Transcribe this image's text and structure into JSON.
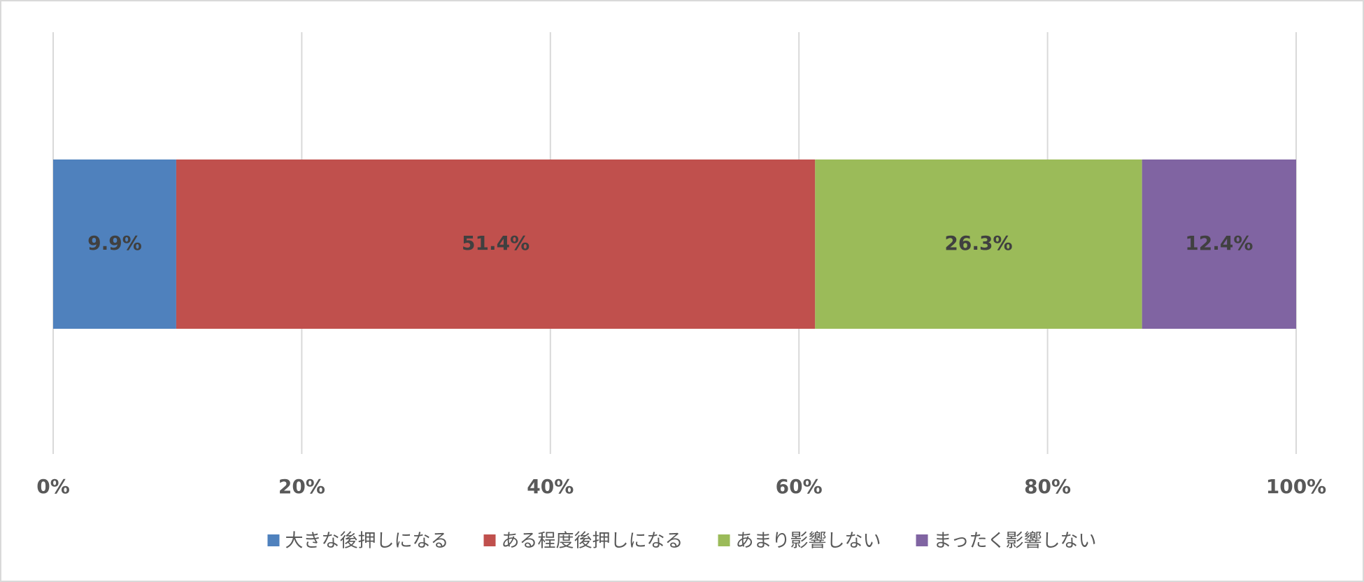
{
  "chart_data": {
    "type": "stacked_bar_horizontal",
    "categories": [
      null
    ],
    "series": [
      {
        "name": "大きな後押しになる",
        "color": "#4f81bd",
        "values": [
          9.9
        ],
        "value_labels": [
          "9.9%"
        ]
      },
      {
        "name": "ある程度後押しになる",
        "color": "#c0504d",
        "values": [
          51.4
        ],
        "value_labels": [
          "51.4%"
        ]
      },
      {
        "name": "あまり影響しない",
        "color": "#9bbb59",
        "values": [
          26.3
        ],
        "value_labels": [
          "26.3%"
        ]
      },
      {
        "name": "まったく影響しない",
        "color": "#8064a2",
        "values": [
          12.4
        ],
        "value_labels": [
          "12.4%"
        ]
      }
    ],
    "xlim": [
      0,
      100
    ],
    "xticks": [
      {
        "value": 0,
        "label": "0%"
      },
      {
        "value": 20,
        "label": "20%"
      },
      {
        "value": 40,
        "label": "40%"
      },
      {
        "value": 60,
        "label": "60%"
      },
      {
        "value": 80,
        "label": "80%"
      },
      {
        "value": 100,
        "label": "100%"
      }
    ],
    "grid": true,
    "legend": "bottom"
  }
}
